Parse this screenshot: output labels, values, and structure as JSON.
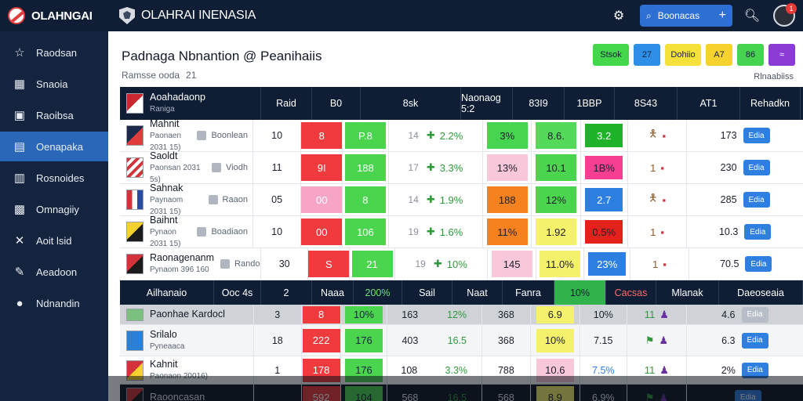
{
  "topbar": {
    "brand": "OLAHNGAI",
    "site_title": "OLAHRAI INENASIA",
    "search_label": "Boonacas",
    "plus": "+",
    "notif_count": "1"
  },
  "sidebar": {
    "items": [
      {
        "label": "Raodsan",
        "icon": "star-icon",
        "glyph": "☆"
      },
      {
        "label": "Snaoia",
        "icon": "stats-icon",
        "glyph": "▦"
      },
      {
        "label": "Raoibsa",
        "icon": "tv-icon",
        "glyph": "▣"
      },
      {
        "label": "Oenapaka",
        "icon": "schedule-icon",
        "glyph": "▤"
      },
      {
        "label": "Rosnoides",
        "icon": "calendar-icon",
        "glyph": "▥"
      },
      {
        "label": "Omnagiiy",
        "icon": "bus-icon",
        "glyph": "▩"
      },
      {
        "label": "Aoit lsid",
        "icon": "tools-icon",
        "glyph": "✕"
      },
      {
        "label": "Aeadoon",
        "icon": "pin-icon",
        "glyph": "✎"
      },
      {
        "label": "Ndnandin",
        "icon": "circle-icon",
        "glyph": "●"
      }
    ]
  },
  "main": {
    "title": "Padnaga Nbnantion @ Peanihaiis",
    "subtitle": "Ramsse ooda",
    "subtitle_num": "21",
    "right_link": "Rlnaabiiss",
    "pills": [
      {
        "label": "Stsok",
        "color": "#44d64b",
        "wide": true
      },
      {
        "label": "27",
        "color": "#2f8ee6",
        "wide": false
      },
      {
        "label": "Dohiio",
        "color": "#f5e13a",
        "wide": true
      },
      {
        "label": "A7",
        "color": "#f5d22e",
        "wide": false
      },
      {
        "label": "86",
        "color": "#46d350",
        "wide": false
      },
      {
        "label": "≈",
        "color": "#8a3bd3",
        "wide": false
      }
    ]
  },
  "table": {
    "header": [
      "Aoahadaonp",
      "Raid",
      "B0",
      "8sk",
      "Naonaog 5:2",
      "83I9",
      "1BBP",
      "8S43",
      "AT1",
      "Rehadkn"
    ],
    "header_rank": "Raniga",
    "rows": [
      {
        "team": "Mahnit",
        "sub": "Paonaen 2031 15)",
        "opp": "Boonlean",
        "val": "10",
        "b1": "8",
        "b1c": "#f03a3e",
        "b2": "P.8",
        "b2c": "#4bd54e",
        "pre": "14",
        "trend": "2.2%",
        "v6": "3%",
        "v6c": "#46d550",
        "v7": "8.6.",
        "v7c": "#54d95a",
        "v8": "3.2",
        "v8c": "#1fb32a",
        "fig": "7",
        "last": "173",
        "btn": "Edia"
      },
      {
        "team": "Saoldt",
        "sub": "Paonsan 2031 5s)",
        "opp": "Viodh",
        "val": "11",
        "b1": "9I",
        "b1c": "#f03a3e",
        "b2": "188",
        "b2c": "#4bd54e",
        "pre": "17",
        "trend": "3.3%",
        "v6": "13%",
        "v6c": "#f9c7da",
        "v7": "10.1",
        "v7c": "#4bd54e",
        "v8": "1B%",
        "v8c": "#f63f93",
        "fig": "1",
        "last": "230",
        "btn": "Edia"
      },
      {
        "team": "Sahnak",
        "sub": "Paynaom 2031 15)",
        "opp": "Raaon",
        "val": "05",
        "b1": "00",
        "b1c": "#f7a5c7",
        "b2": "8",
        "b2c": "#4bd54e",
        "pre": "14",
        "trend": "1.9%",
        "v6": "188",
        "v6c": "#f5821e",
        "v7": "12%",
        "v7c": "#4bd54e",
        "v8": "2.7",
        "v8c": "#2e7fe2",
        "fig": "7",
        "last": "285",
        "btn": "Edia"
      },
      {
        "team": "Baihnt",
        "sub": "Pynaon 2031 15)",
        "opp": "Boadiaon",
        "val": "10",
        "b1": "00",
        "b1c": "#f03a3e",
        "b2": "106",
        "b2c": "#4bd54e",
        "pre": "19",
        "trend": "1.6%",
        "v6": "11%",
        "v6c": "#f5821e",
        "v7": "1.92",
        "v7c": "#f6f16a",
        "v8": "0.5%",
        "v8c": "#e4221c",
        "fig": "1",
        "last": "10.3",
        "btn": "Edia"
      },
      {
        "team": "Raonagenanm",
        "sub": "Pynaom 396 160",
        "opp": "Rando",
        "val": "30",
        "b1": "S",
        "b1c": "#f03a3e",
        "b2": "21",
        "b2c": "#4bd54e",
        "pre": "19",
        "trend": "10%",
        "v6": "145",
        "v6c": "#f9c7da",
        "v7": "11.0%",
        "v7c": "#f6f16a",
        "v8": "23%",
        "v8c": "#2e7fe2",
        "fig": "1",
        "last": "70.5",
        "btn": "Edia"
      }
    ],
    "subhead": [
      "Ailhanaio",
      "Ooc 4s",
      "2",
      "Naaa",
      "200%",
      "Sail",
      "Naat",
      "Fanra",
      "10%",
      "Cacsas",
      "Mlanak",
      "Daeoseaia"
    ],
    "lower": [
      {
        "team": "Paonhae Kardocl",
        "sub": "",
        "val": "3",
        "b1": "8",
        "b2": "10%",
        "c5a": "163",
        "c5b": "12%",
        "v6": "368",
        "v7": "6.9",
        "v8": "10%",
        "figs": "11",
        "last": "4.6",
        "btn": "Edia"
      },
      {
        "team": "Srilalo",
        "sub": "Pyneaaca",
        "val": "18",
        "b1": "222",
        "b2": "176",
        "c5a": "403",
        "c5b": "16.5",
        "v6": "368",
        "v7": "10%",
        "v8": "7.15",
        "figs": "",
        "last": "6.3",
        "btn": "Edia"
      },
      {
        "team": "Kahnit",
        "sub": "Paonaon 20016)",
        "val": "1",
        "b1": "178",
        "b2": "176",
        "c5a": "108",
        "c5b": "3.3%",
        "v6": "788",
        "v7": "10.6",
        "v8": "7.5%",
        "figs": "11",
        "last": "2%",
        "btn": "Edia"
      },
      {
        "team": "Raooncasan",
        "sub": "",
        "val": "",
        "b1": "592",
        "b2": "104",
        "c5a": "568",
        "c5b": "16.5",
        "v6": "568",
        "v7": "8.9",
        "v8": "6.9%",
        "figs": "",
        "last": "",
        "btn": "Edia"
      }
    ]
  }
}
